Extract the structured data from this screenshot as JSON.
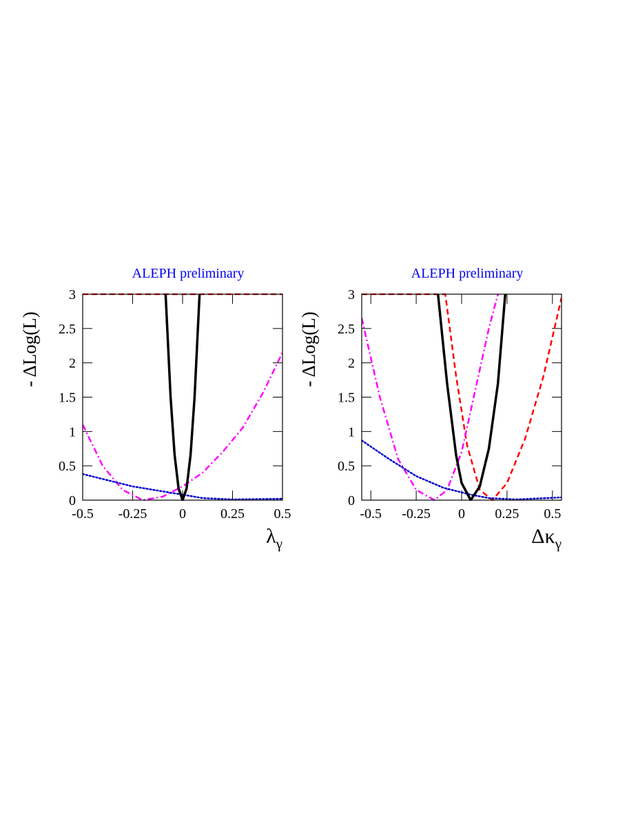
{
  "chart_data": [
    {
      "type": "line",
      "title": "ALEPH preliminary",
      "title_color": "#0000ee",
      "ylabel": "- ΔLog(L)",
      "xlabel": "λ",
      "xlabel_sub": "γ",
      "xlim": [
        -0.5,
        0.5
      ],
      "ylim": [
        0,
        3
      ],
      "xticks": [
        -0.5,
        -0.25,
        0,
        0.25,
        0.5
      ],
      "yticks": [
        0,
        0.5,
        1,
        1.5,
        2,
        2.5,
        3
      ],
      "series": [
        {
          "color": "#ff0000",
          "style": "dashed",
          "width": 2.5,
          "x": [
            -0.5,
            0.5
          ],
          "values": [
            3,
            3
          ]
        },
        {
          "color": "#ff00ff",
          "style": "dashdot",
          "width": 2.5,
          "x": [
            -0.5,
            -0.4,
            -0.3,
            -0.2,
            -0.1,
            0,
            0.1,
            0.2,
            0.3,
            0.4,
            0.5
          ],
          "values": [
            1.1,
            0.5,
            0.15,
            0,
            0.05,
            0.2,
            0.4,
            0.7,
            1.05,
            1.55,
            2.15
          ]
        },
        {
          "color": "#0000cc",
          "style": "dotted",
          "width": 2.5,
          "x": [
            -0.5,
            -0.25,
            0,
            0.1,
            0.25,
            0.5
          ],
          "values": [
            0.38,
            0.2,
            0.08,
            0.03,
            0.01,
            0.02
          ]
        },
        {
          "color": "#000000",
          "style": "solid",
          "width": 3.5,
          "x": [
            -0.085,
            -0.06,
            -0.04,
            -0.02,
            0,
            0.02,
            0.04,
            0.06,
            0.085
          ],
          "values": [
            3,
            1.5,
            0.66,
            0.17,
            0,
            0.17,
            0.66,
            1.5,
            3
          ]
        }
      ]
    },
    {
      "type": "line",
      "title": "ALEPH preliminary",
      "title_color": "#0000ee",
      "ylabel": "- ΔLog(L)",
      "xlabel": "Δκ",
      "xlabel_sub": "γ",
      "xlim": [
        -0.55,
        0.55
      ],
      "ylim": [
        0,
        3
      ],
      "xticks": [
        -0.5,
        -0.25,
        0,
        0.25,
        0.5
      ],
      "yticks": [
        0,
        0.5,
        1,
        1.5,
        2,
        2.5,
        3
      ],
      "series": [
        {
          "color": "#ff0000",
          "style": "dashed",
          "width": 2.5,
          "x": [
            -0.55,
            -0.09,
            -0.03,
            0.03,
            0.1,
            0.17,
            0.25,
            0.35,
            0.45,
            0.55
          ],
          "values": [
            3,
            3,
            1.8,
            0.8,
            0.15,
            0,
            0.25,
            0.9,
            1.8,
            2.95
          ]
        },
        {
          "color": "#ff00ff",
          "style": "dashdot",
          "width": 2.5,
          "x": [
            -0.55,
            -0.45,
            -0.35,
            -0.25,
            -0.15,
            -0.08,
            0,
            0.05,
            0.1,
            0.15,
            0.2
          ],
          "values": [
            2.65,
            1.5,
            0.6,
            0.15,
            0,
            0.15,
            0.7,
            1.3,
            1.9,
            2.5,
            3
          ]
        },
        {
          "color": "#0000cc",
          "style": "dotted",
          "width": 2.5,
          "x": [
            -0.55,
            -0.4,
            -0.25,
            -0.1,
            0.05,
            0.15,
            0.3,
            0.55
          ],
          "values": [
            0.87,
            0.6,
            0.35,
            0.18,
            0.08,
            0.03,
            0.01,
            0.04
          ]
        },
        {
          "color": "#000000",
          "style": "solid",
          "width": 3.5,
          "x": [
            -0.13,
            -0.08,
            -0.03,
            0,
            0.05,
            0.1,
            0.15,
            0.2,
            0.24
          ],
          "values": [
            3,
            1.7,
            0.65,
            0.25,
            0,
            0.2,
            0.75,
            1.7,
            3
          ]
        }
      ]
    }
  ]
}
